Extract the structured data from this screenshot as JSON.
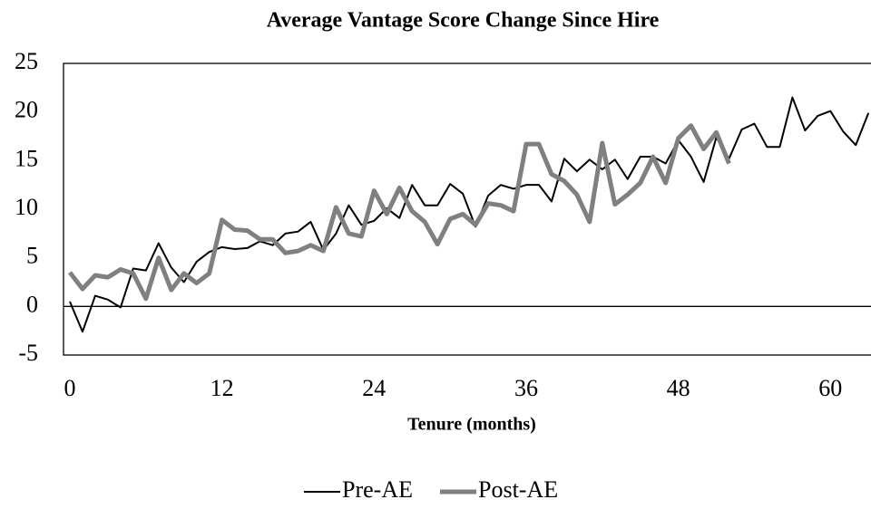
{
  "chart_data": {
    "type": "line",
    "title": "Average Vantage Score Change Since Hire",
    "x_label": "Tenure (months)",
    "x": [
      0,
      1,
      2,
      3,
      4,
      5,
      6,
      7,
      8,
      9,
      10,
      11,
      12,
      13,
      14,
      15,
      16,
      17,
      18,
      19,
      20,
      21,
      22,
      23,
      24,
      25,
      26,
      27,
      28,
      29,
      30,
      31,
      32,
      33,
      34,
      35,
      36,
      37,
      38,
      39,
      40,
      41,
      42,
      43,
      44,
      45,
      46,
      47,
      48,
      49,
      50,
      51,
      52,
      53,
      54,
      55,
      56,
      57,
      58,
      59,
      60,
      61,
      62,
      63
    ],
    "series": [
      {
        "name": "Pre-AE",
        "color": "#000000",
        "values": [
          0.5,
          -2.6,
          1.1,
          0.7,
          -0.1,
          3.9,
          3.7,
          6.5,
          4.0,
          2.5,
          4.6,
          5.6,
          6.1,
          5.9,
          6.0,
          6.7,
          6.3,
          7.5,
          7.7,
          8.7,
          5.8,
          7.5,
          10.4,
          8.4,
          8.8,
          10.1,
          9.1,
          12.5,
          10.4,
          10.4,
          12.6,
          11.6,
          8.2,
          11.4,
          12.5,
          12.1,
          12.5,
          12.5,
          10.8,
          15.2,
          13.9,
          15.1,
          14.1,
          15.1,
          13.1,
          15.4,
          15.4,
          14.7,
          17.1,
          15.4,
          12.8,
          17.4,
          15.2,
          18.2,
          18.8,
          16.4,
          16.4,
          21.5,
          18.1,
          19.6,
          20.1,
          18.0,
          16.6,
          19.9
        ]
      },
      {
        "name": "Post-AE",
        "color": "#808080",
        "values": [
          3.5,
          1.8,
          3.2,
          3.0,
          3.8,
          3.4,
          0.8,
          5.0,
          1.7,
          3.4,
          2.4,
          3.4,
          8.9,
          7.9,
          7.8,
          6.9,
          6.9,
          5.5,
          5.7,
          6.3,
          5.7,
          10.2,
          7.5,
          7.2,
          11.9,
          9.5,
          12.2,
          9.8,
          8.7,
          6.4,
          9.0,
          9.5,
          8.4,
          10.6,
          10.4,
          9.8,
          16.7,
          16.7,
          13.6,
          12.9,
          11.5,
          8.7,
          16.8,
          10.5,
          11.5,
          12.7,
          15.4,
          12.7,
          17.3,
          18.6,
          16.2,
          17.9,
          14.7,
          null,
          null,
          null,
          null,
          null,
          null,
          null,
          null,
          null,
          null,
          null
        ]
      }
    ],
    "xlim": [
      -0.5,
      63.2
    ],
    "xticks": [
      0,
      12,
      24,
      36,
      48,
      60
    ],
    "ylim": [
      -5,
      25
    ],
    "yticks": [
      -5,
      0,
      5,
      10,
      15,
      20,
      25
    ],
    "legend": "bottom"
  }
}
